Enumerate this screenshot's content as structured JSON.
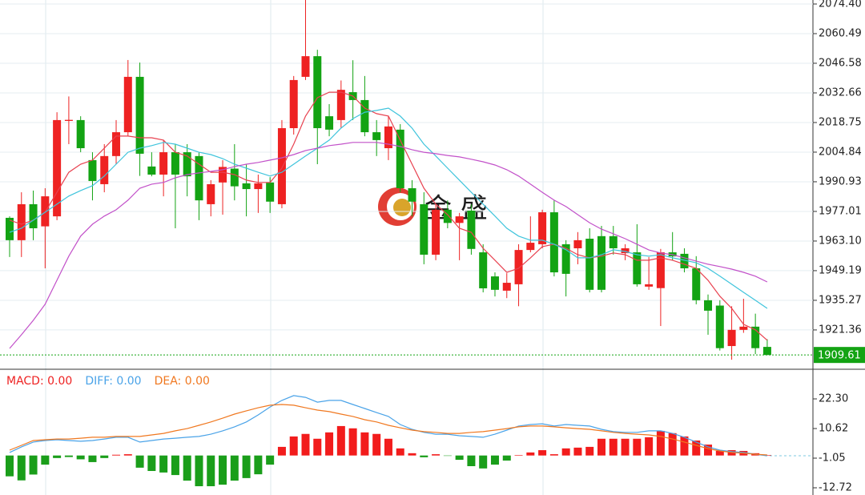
{
  "chart_data": [
    {
      "type": "candlestick",
      "open": [
        1974.0,
        1963.5,
        1980.4,
        1970.0,
        1974.7,
        2019.5,
        2019.9,
        2001.1,
        1989.8,
        2003.0,
        2014.2,
        2040.2,
        1998.1,
        1994.3,
        2004.8,
        2004.8,
        2003.0,
        1980.4,
        1990.6,
        1997.1,
        1990.2,
        1987.5,
        1990.6,
        1980.4,
        2016.1,
        2040.2,
        2049.9,
        2021.7,
        2019.9,
        2033.0,
        2029.3,
        2014.2,
        2006.7,
        2015.4,
        1987.9,
        1980.4,
        1956.7,
        1977.8,
        1971.6,
        1977.4,
        1957.8,
        1946.5,
        1939.8,
        1942.8,
        1958.9,
        1961.6,
        1976.6,
        1961.6,
        1959.7,
        1964.2,
        1965.4,
        1965.4,
        1957.4,
        1957.8,
        1941.7,
        1941.0,
        1957.8,
        1957.1,
        1950.3,
        1935.3,
        1932.8,
        1913.8,
        1921.4,
        1922.9,
        1913.4
      ],
      "high": [
        1974.7,
        1986.0,
        1986.8,
        1987.9,
        2023.6,
        2031.0,
        2021.7,
        2004.8,
        2008.6,
        2019.9,
        2048.1,
        2046.9,
        2004.8,
        2010.5,
        2008.6,
        2008.6,
        2004.8,
        1991.7,
        2001.1,
        2008.6,
        1999.2,
        1994.3,
        1993.1,
        2019.9,
        2040.6,
        2076.3,
        2052.9,
        2027.4,
        2038.5,
        2048.0,
        2040.6,
        2019.9,
        2021.7,
        2018.0,
        1991.7,
        1986.0,
        1980.4,
        1982.2,
        1976.3,
        1980.4,
        1961.6,
        1948.4,
        1948.0,
        1961.6,
        1974.7,
        1977.8,
        1982.2,
        1963.5,
        1967.3,
        1969.1,
        1970.2,
        1970.2,
        1961.6,
        1971.0,
        1955.6,
        1959.4,
        1967.3,
        1959.7,
        1956.0,
        1938.0,
        1935.3,
        1932.5,
        1936.0,
        1929.0,
        1917.0
      ],
      "low": [
        1955.6,
        1955.6,
        1963.5,
        1950.3,
        1972.9,
        2008.6,
        2004.8,
        1982.2,
        1986.0,
        1999.2,
        2012.3,
        1993.7,
        1993.5,
        1984.1,
        1969.1,
        1984.1,
        1972.9,
        1974.7,
        1975.5,
        1982.2,
        1974.7,
        1976.3,
        1976.3,
        1978.5,
        2013.1,
        2038.7,
        1999.2,
        2012.3,
        2016.1,
        2019.9,
        2012.3,
        2003.0,
        2001.1,
        1986.0,
        1974.7,
        1952.2,
        1954.1,
        1969.1,
        1954.1,
        1956.7,
        1939.0,
        1937.1,
        1936.3,
        1932.5,
        1957.8,
        1959.7,
        1946.5,
        1937.1,
        1952.2,
        1939.0,
        1939.0,
        1956.7,
        1954.1,
        1941.7,
        1940.2,
        1923.2,
        1954.1,
        1948.4,
        1933.4,
        1919.1,
        1911.7,
        1907.4,
        1920.0,
        1910.0,
        1909.6
      ],
      "close": [
        1963.5,
        1980.4,
        1969.1,
        1984.1,
        2019.9,
        2020.0,
        2006.7,
        1991.3,
        2003.0,
        2014.2,
        2040.2,
        2004.1,
        1994.3,
        2004.8,
        1994.3,
        1993.5,
        1982.2,
        1989.8,
        1997.9,
        1988.8,
        1987.5,
        1990.2,
        1981.6,
        2016.1,
        2038.7,
        2049.9,
        2016.1,
        2015.4,
        2034.1,
        2029.3,
        2014.2,
        2010.5,
        2016.9,
        1987.9,
        1981.6,
        1956.7,
        1977.8,
        1971.6,
        1974.7,
        1959.4,
        1940.9,
        1940.2,
        1943.5,
        1958.9,
        1962.3,
        1976.6,
        1948.4,
        1947.7,
        1963.5,
        1940.2,
        1940.2,
        1959.7,
        1959.7,
        1942.8,
        1942.8,
        1957.8,
        1955.9,
        1950.3,
        1935.3,
        1930.4,
        1912.8,
        1921.4,
        1922.9,
        1912.8,
        1909.6
      ],
      "up_color": "#ee2222",
      "down_color": "#13a313",
      "series": [
        {
          "color": "#e8414f",
          "values": [
            1972.9,
            1971.0,
            1972.9,
            1976.6,
            1986.0,
            1995.4,
            1999.2,
            2001.1,
            2006.7,
            2012.4,
            2012.4,
            2011.6,
            2011.6,
            2010.5,
            2004.8,
            2003.0,
            1999.2,
            1995.4,
            1995.4,
            1994.3,
            1991.7,
            1990.6,
            1990.6,
            1997.3,
            2008.6,
            2021.8,
            2030.4,
            2033.0,
            2033.0,
            2031.2,
            2025.5,
            2022.9,
            2021.8,
            2010.5,
            1999.2,
            1987.9,
            1980.4,
            1975.5,
            1969.1,
            1967.2,
            1959.7,
            1954.1,
            1948.4,
            1950.3,
            1955.2,
            1960.5,
            1961.6,
            1959.7,
            1956.7,
            1955.2,
            1956.0,
            1957.5,
            1956.7,
            1954.1,
            1954.1,
            1955.2,
            1954.1,
            1952.2,
            1950.3,
            1944.7,
            1937.2,
            1931.5,
            1924.0,
            1921.4,
            1916.5
          ]
        },
        {
          "color": "#3fc4dc",
          "values": [
            1967.2,
            1969.1,
            1972.9,
            1976.6,
            1980.4,
            1984.2,
            1986.8,
            1989.1,
            1993.6,
            1999.2,
            2004.8,
            2006.7,
            2007.9,
            2009.4,
            2008.6,
            2006.7,
            2004.8,
            2003.7,
            2001.8,
            1999.2,
            1997.3,
            1995.4,
            1993.6,
            1995.4,
            1999.2,
            2003.0,
            2006.7,
            2010.5,
            2016.1,
            2020.6,
            2023.6,
            2024.4,
            2025.5,
            2021.8,
            2016.1,
            2008.6,
            2003.0,
            1997.3,
            1991.7,
            1986.0,
            1980.4,
            1974.8,
            1969.1,
            1965.4,
            1963.5,
            1963.5,
            1961.6,
            1959.0,
            1955.2,
            1955.2,
            1956.7,
            1959.0,
            1958.2,
            1956.7,
            1956.0,
            1956.7,
            1955.2,
            1954.1,
            1952.9,
            1950.3,
            1946.6,
            1942.8,
            1939.0,
            1935.3,
            1931.5
          ]
        },
        {
          "color": "#c251c9",
          "values": [
            1912.7,
            1919.1,
            1925.9,
            1933.4,
            1944.7,
            1956.0,
            1965.4,
            1971.0,
            1974.8,
            1977.8,
            1982.3,
            1987.9,
            1989.8,
            1990.6,
            1992.8,
            1994.3,
            1995.1,
            1995.8,
            1996.6,
            1998.1,
            1999.2,
            2000.0,
            2001.1,
            2002.2,
            2003.7,
            2005.6,
            2006.7,
            2007.9,
            2008.6,
            2009.4,
            2009.4,
            2009.4,
            2008.6,
            2007.5,
            2006.0,
            2004.8,
            2004.1,
            2003.3,
            2002.6,
            2001.5,
            2000.3,
            1998.8,
            1996.6,
            1993.6,
            1989.8,
            1986.0,
            1982.3,
            1979.3,
            1975.5,
            1971.7,
            1968.7,
            1966.5,
            1964.2,
            1961.6,
            1958.9,
            1957.5,
            1956.7,
            1955.2,
            1953.7,
            1952.2,
            1951.1,
            1949.9,
            1948.4,
            1946.6,
            1943.9
          ]
        }
      ],
      "current_price": 1909.61,
      "current_price_color": "#13a313",
      "ylim": [
        1903.28,
        2076.28
      ],
      "yticks": [
        {
          "value": 2074.4,
          "label": "2074.40"
        },
        2060.49,
        2046.58,
        2032.66,
        2018.75,
        2004.84,
        1990.93,
        1977.01,
        {
          "value": 1963.1,
          "label": "1963.10"
        },
        1949.19,
        1935.27,
        1921.36
      ],
      "grid": true,
      "watermark": "金 盛"
    },
    {
      "type": "macd",
      "legend": [
        {
          "text": "MACD: 0.00",
          "color": "#ee2222"
        },
        {
          "text": "DIFF: 0.00",
          "color": "#4aa3e8"
        },
        {
          "text": "DEA: 0.00",
          "color": "#f07820"
        }
      ],
      "histogram": [
        -8.2,
        -9.8,
        -7.5,
        -3.6,
        -1.0,
        -0.6,
        -1.5,
        -2.6,
        -1.0,
        0.3,
        0.5,
        -4.8,
        -6.1,
        -6.7,
        -7.7,
        -9.9,
        -12.1,
        -12.1,
        -11.5,
        -9.9,
        -8.9,
        -7.4,
        -3.6,
        3.4,
        7.5,
        8.5,
        6.6,
        9.1,
        11.6,
        10.7,
        9.1,
        8.5,
        6.6,
        2.8,
        0.9,
        -0.7,
        0.5,
        -0.1,
        -1.7,
        -4.2,
        -5.1,
        -3.6,
        -2.0,
        0.2,
        1.2,
        2.1,
        0.5,
        2.8,
        3.1,
        3.4,
        6.6,
        6.6,
        6.6,
        6.6,
        7.2,
        9.7,
        8.8,
        7.5,
        5.9,
        4.3,
        1.8,
        2.1,
        1.8,
        0.9,
        0.2
      ],
      "up_color": "#f21c1c",
      "down_color": "#1a9e1a",
      "series": [
        {
          "color": "#4aa3e8",
          "values": [
            1.2,
            3.4,
            5.3,
            5.9,
            6.2,
            5.9,
            5.6,
            5.9,
            6.5,
            7.2,
            7.2,
            5.3,
            5.9,
            6.5,
            6.8,
            7.2,
            7.5,
            8.4,
            9.7,
            11.3,
            13.2,
            16.0,
            19.1,
            21.7,
            23.6,
            22.9,
            21.0,
            21.7,
            21.7,
            20.1,
            18.5,
            16.9,
            15.4,
            12.2,
            10.3,
            9.1,
            8.4,
            8.4,
            7.8,
            7.5,
            7.2,
            8.4,
            10.0,
            11.6,
            12.2,
            12.5,
            11.6,
            12.2,
            11.9,
            11.6,
            10.3,
            9.4,
            9.1,
            9.1,
            9.7,
            9.7,
            8.7,
            7.2,
            5.3,
            3.4,
            2.1,
            1.5,
            1.2,
            0.5,
            -0.1
          ]
        },
        {
          "color": "#f07820",
          "values": [
            2.1,
            4.0,
            5.9,
            6.2,
            6.5,
            6.5,
            6.8,
            7.2,
            7.2,
            7.5,
            7.5,
            7.5,
            8.1,
            8.7,
            9.7,
            10.6,
            11.9,
            13.2,
            14.7,
            16.3,
            17.6,
            18.8,
            19.8,
            20.1,
            19.8,
            18.8,
            17.9,
            17.3,
            16.3,
            15.4,
            14.1,
            13.2,
            11.9,
            10.9,
            10.0,
            9.4,
            9.1,
            8.7,
            8.7,
            9.1,
            9.4,
            10.0,
            10.6,
            11.3,
            11.6,
            11.6,
            11.3,
            10.9,
            10.6,
            10.3,
            9.7,
            9.1,
            8.7,
            8.4,
            8.1,
            7.5,
            6.5,
            5.3,
            4.0,
            2.7,
            1.8,
            1.2,
            0.9,
            0.5,
            0.2
          ]
        }
      ],
      "ylim": [
        -15.56,
        33.66
      ],
      "yticks": [
        {
          "value": 22.3,
          "label": "22.30"
        },
        10.62,
        -1.05,
        -12.72
      ]
    }
  ]
}
